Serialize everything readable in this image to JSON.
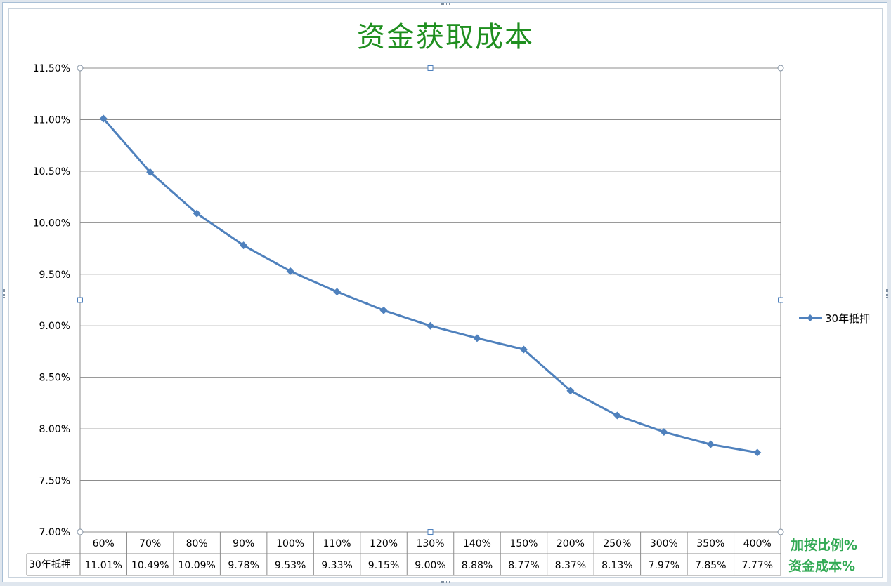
{
  "chart_data": {
    "type": "line",
    "title": "资金获取成本",
    "categories": [
      "60%",
      "70%",
      "80%",
      "90%",
      "100%",
      "110%",
      "120%",
      "130%",
      "140%",
      "150%",
      "200%",
      "250%",
      "300%",
      "350%",
      "400%"
    ],
    "series": [
      {
        "name": "30年抵押",
        "values": [
          11.01,
          10.49,
          10.09,
          9.78,
          9.53,
          9.33,
          9.15,
          9.0,
          8.88,
          8.77,
          8.37,
          8.13,
          7.97,
          7.85,
          7.77
        ],
        "labels": [
          "11.01%",
          "10.49%",
          "10.09%",
          "9.78%",
          "9.53%",
          "9.33%",
          "9.15%",
          "9.00%",
          "8.88%",
          "8.77%",
          "8.37%",
          "8.13%",
          "7.97%",
          "7.85%",
          "7.77%"
        ]
      }
    ],
    "ylim": [
      7.0,
      11.5
    ],
    "yticks": [
      "11.50%",
      "11.00%",
      "10.50%",
      "10.00%",
      "9.50%",
      "9.00%",
      "8.50%",
      "8.00%",
      "7.50%",
      "7.00%"
    ],
    "xlabel": "加按比例%",
    "ylabel": "资金成本%",
    "grid": true,
    "legend_position": "right",
    "data_table": true,
    "colors": {
      "line": "#4f81bd",
      "title": "#1f8f1f",
      "axis_title": "#33aa55",
      "grid": "#8c8c8c"
    }
  }
}
